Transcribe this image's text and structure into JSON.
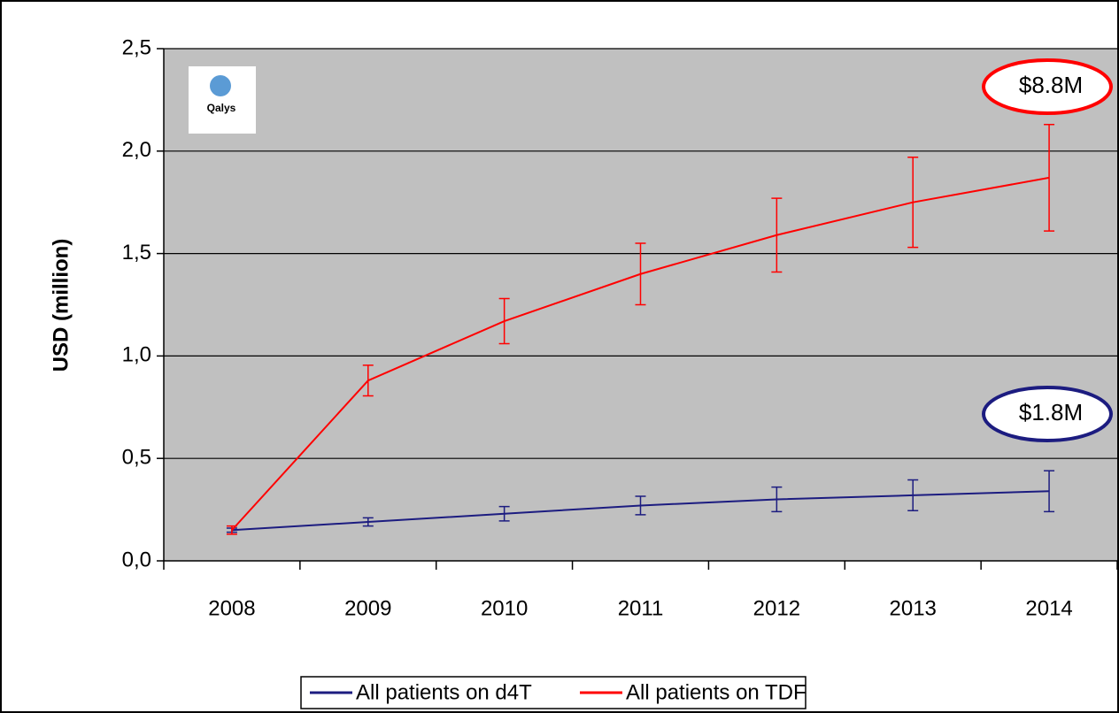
{
  "chart_data": {
    "type": "line",
    "ylabel": "USD (million)",
    "logo": "Qalys",
    "categories": [
      "2008",
      "2009",
      "2010",
      "2011",
      "2012",
      "2013",
      "2014"
    ],
    "series": [
      {
        "name": "All patients on d4T",
        "color": "#1c1c80",
        "values": [
          0.15,
          0.19,
          0.23,
          0.27,
          0.3,
          0.32,
          0.34
        ],
        "errors": [
          0.01,
          0.02,
          0.035,
          0.045,
          0.06,
          0.075,
          0.1
        ]
      },
      {
        "name": "All patients on TDF",
        "color": "#ff0000",
        "values": [
          0.15,
          0.88,
          1.17,
          1.4,
          1.59,
          1.75,
          1.87
        ],
        "errors": [
          0.02,
          0.075,
          0.11,
          0.15,
          0.18,
          0.22,
          0.26
        ]
      }
    ],
    "annotations": [
      {
        "text": "$8.8M",
        "color": "#ff0000"
      },
      {
        "text": "$1.8M",
        "color": "#1c1c80"
      }
    ],
    "ylim": [
      0,
      2.5
    ],
    "yticks": [
      {
        "value": 0,
        "label": "0,0"
      },
      {
        "value": 0.5,
        "label": "0,5"
      },
      {
        "value": 1,
        "label": "1,0"
      },
      {
        "value": 1.5,
        "label": "1,5"
      },
      {
        "value": 2,
        "label": "2,0"
      },
      {
        "value": 2.5,
        "label": "2,5"
      }
    ],
    "grid": true,
    "legend": "bottom"
  }
}
